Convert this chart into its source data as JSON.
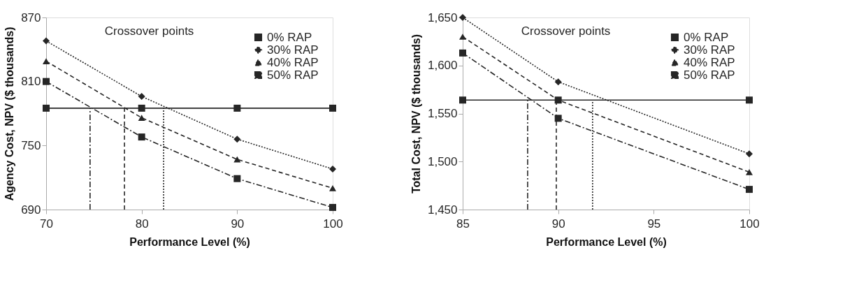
{
  "chart_data": [
    {
      "type": "line",
      "xlabel": "Performance Level (%)",
      "ylabel": "Agency Cost, NPV ($ thousands)",
      "x": [
        70,
        80,
        90,
        100
      ],
      "xlim": [
        70,
        100
      ],
      "xticks": [
        70,
        80,
        90,
        100
      ],
      "ylim": [
        690,
        870
      ],
      "yticks": [
        690,
        750,
        810,
        870
      ],
      "legend": "top right",
      "series": [
        {
          "name": "0% RAP",
          "color": "#262626",
          "marker": "square",
          "line_style": "solid",
          "values": [
            785,
            785,
            785,
            785
          ]
        },
        {
          "name": "30% RAP",
          "color": "#262626",
          "marker": "diamond",
          "line_style": "dotted",
          "values": [
            848,
            796,
            756,
            728
          ]
        },
        {
          "name": "40% RAP",
          "color": "#262626",
          "marker": "triangle",
          "line_style": "dashed",
          "values": [
            829,
            776,
            737,
            710
          ]
        },
        {
          "name": "50% RAP",
          "color": "#262626",
          "marker": "square",
          "line_style": "dashdot",
          "values": [
            810,
            758,
            719,
            692
          ]
        }
      ],
      "annotations": [
        "Crossover points"
      ],
      "ref_lines": [
        {
          "axis": "x",
          "value": 74.6,
          "line_style": "dashdot",
          "color": "#262626"
        },
        {
          "axis": "x",
          "value": 78.2,
          "line_style": "dashed",
          "color": "#262626"
        },
        {
          "axis": "x",
          "value": 82.3,
          "line_style": "dotted",
          "color": "#262626"
        }
      ]
    },
    {
      "type": "line",
      "xlabel": "Performance Level (%)",
      "ylabel": "Total Cost, NPV ($ thousands)",
      "x": [
        85,
        90,
        100
      ],
      "xlim": [
        85,
        100
      ],
      "xticks": [
        85,
        90,
        95,
        100
      ],
      "ylim": [
        1450,
        1650
      ],
      "yticks": [
        {
          "value": 1450,
          "label": "1,450"
        },
        {
          "value": 1500,
          "label": "1,500"
        },
        {
          "value": 1550,
          "label": "1,550"
        },
        {
          "value": 1600,
          "label": "1,600"
        },
        {
          "value": 1650,
          "label": "1,650"
        }
      ],
      "legend": "top right",
      "series": [
        {
          "name": "0% RAP",
          "color": "#262626",
          "marker": "square",
          "line_style": "solid",
          "values": [
            1564,
            1564,
            1564
          ]
        },
        {
          "name": "30% RAP",
          "color": "#262626",
          "marker": "diamond",
          "line_style": "dotted",
          "values": [
            1650,
            1583,
            1508
          ]
        },
        {
          "name": "40% RAP",
          "color": "#262626",
          "marker": "triangle",
          "line_style": "dashed",
          "values": [
            1630,
            1564,
            1489
          ]
        },
        {
          "name": "50% RAP",
          "color": "#262626",
          "marker": "square",
          "line_style": "dashdot",
          "values": [
            1613,
            1545,
            1471
          ]
        }
      ],
      "annotations": [
        "Crossover points"
      ],
      "ref_lines": [
        {
          "axis": "x",
          "value": 88.4,
          "line_style": "dashdot",
          "color": "#262626"
        },
        {
          "axis": "x",
          "value": 89.9,
          "line_style": "dashed",
          "color": "#262626"
        },
        {
          "axis": "x",
          "value": 91.8,
          "line_style": "dotted",
          "color": "#262626"
        }
      ]
    }
  ]
}
